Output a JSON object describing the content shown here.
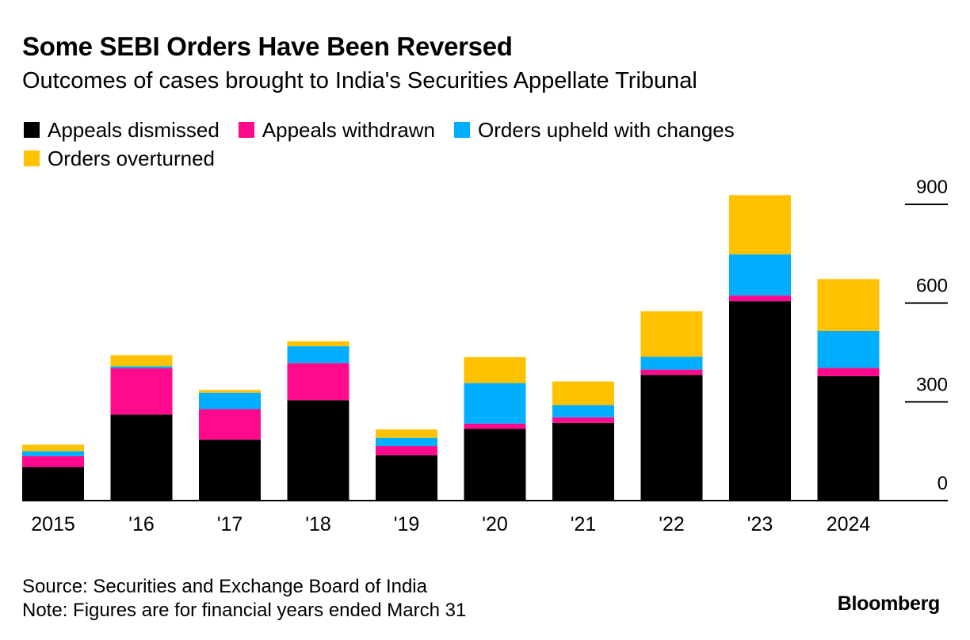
{
  "header": {
    "title": "Some SEBI Orders Have Been Reversed",
    "subtitle": "Outcomes of cases brought to India's Securities Appellate Tribunal"
  },
  "legend": [
    {
      "label": "Appeals dismissed",
      "color": "#000000"
    },
    {
      "label": "Appeals withdrawn",
      "color": "#ff0a8d"
    },
    {
      "label": "Orders upheld with changes",
      "color": "#00aeff"
    },
    {
      "label": "Orders overturned",
      "color": "#ffc100"
    }
  ],
  "footer": {
    "source": "Source: Securities and Exchange Board of India",
    "note": "Note: Figures are for financial years ended March 31",
    "brand": "Bloomberg"
  },
  "chart_data": {
    "type": "bar",
    "stacked": true,
    "title": "Some SEBI Orders Have Been Reversed",
    "subtitle": "Outcomes of cases brought to India's Securities Appellate Tribunal",
    "categories": [
      "2015",
      "'16",
      "'17",
      "'18",
      "'19",
      "'20",
      "'21",
      "'22",
      "'23",
      "2024"
    ],
    "series": [
      {
        "name": "Appeals dismissed",
        "color": "#000000",
        "values": [
          102,
          261,
          185,
          305,
          138,
          218,
          236,
          382,
          606,
          378
        ]
      },
      {
        "name": "Appeals withdrawn",
        "color": "#ff0a8d",
        "values": [
          33,
          141,
          93,
          113,
          28,
          16,
          17,
          16,
          17,
          25
        ]
      },
      {
        "name": "Orders upheld with changes",
        "color": "#00aeff",
        "values": [
          15,
          6,
          50,
          51,
          25,
          123,
          37,
          39,
          125,
          112
        ]
      },
      {
        "name": "Orders overturned",
        "color": "#ffc100",
        "values": [
          20,
          34,
          8,
          15,
          25,
          79,
          72,
          138,
          180,
          158
        ]
      }
    ],
    "yticks": [
      0,
      300,
      600,
      900
    ],
    "ylim": [
      0,
      900
    ],
    "y_axis_position": "right",
    "xlabel": "",
    "ylabel": "",
    "legend_position": "top-left"
  }
}
